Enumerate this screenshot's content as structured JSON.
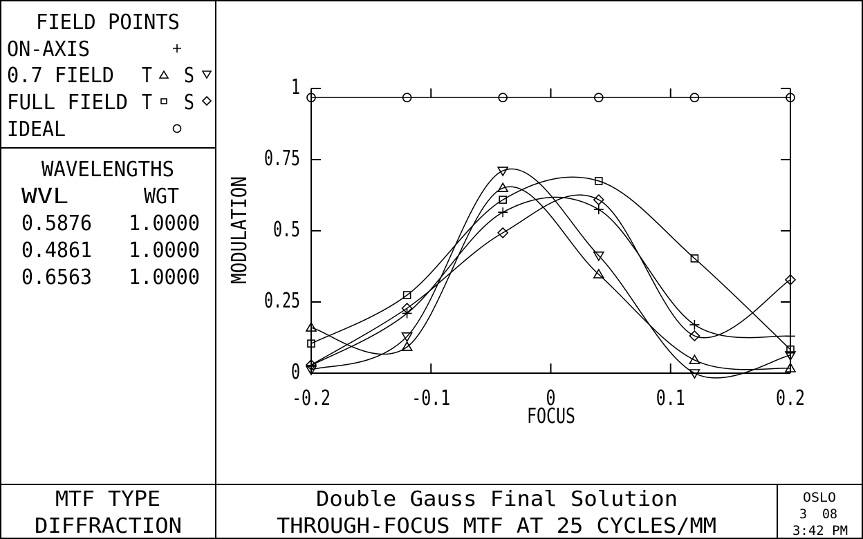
{
  "legend": {
    "title": "FIELD POINTS",
    "on_axis": "ON-AXIS",
    "field07": "0.7 FIELD",
    "full_field": "FULL FIELD",
    "ideal": "IDEAL",
    "t": "T",
    "s": "S"
  },
  "wavelengths": {
    "title": "WAVELENGTHS",
    "col_wvl": "WVL",
    "col_wgt": "WGT",
    "rows": [
      {
        "wvl": "0.5876",
        "wgt": "1.0000"
      },
      {
        "wvl": "0.4861",
        "wgt": "1.0000"
      },
      {
        "wvl": "0.6563",
        "wgt": "1.0000"
      }
    ]
  },
  "footer": {
    "mtf_type_label": "MTF TYPE",
    "mtf_type_value": "DIFFRACTION",
    "title": "Double Gauss Final Solution",
    "subtitle": "THROUGH-FOCUS MTF AT 25 CYCLES/MM",
    "program": "OSLO",
    "date": "3  08",
    "time": "3:42 PM"
  },
  "chart_data": {
    "type": "line",
    "title": "THROUGH-FOCUS MTF AT 25 CYCLES/MM",
    "xlabel": "FOCUS",
    "ylabel": "MODULATION",
    "xlim": [
      -0.2,
      0.2
    ],
    "ylim": [
      0,
      1
    ],
    "xticks": [
      "-0.2",
      "-0.1",
      "0",
      "0.1",
      "0.2"
    ],
    "yticks": [
      "0",
      "0.25",
      "0.5",
      "0.75",
      "1"
    ],
    "grid": false,
    "x": [
      -0.2,
      -0.12,
      -0.04,
      0.04,
      0.12,
      0.2
    ],
    "series": [
      {
        "name": "On-axis",
        "marker": "plus",
        "values": [
          0.027,
          0.21,
          0.565,
          0.575,
          0.17,
          0.13
        ]
      },
      {
        "name": "0.7 Field T",
        "marker": "triangle-up",
        "values": [
          0.16,
          0.092,
          0.65,
          0.347,
          0.046,
          0.017
        ]
      },
      {
        "name": "0.7 Field S",
        "marker": "triangle-down",
        "values": [
          0.012,
          0.129,
          0.711,
          0.413,
          0.0,
          0.063
        ]
      },
      {
        "name": "Full Field T",
        "marker": "square",
        "values": [
          0.104,
          0.274,
          0.609,
          0.675,
          0.403,
          0.083
        ]
      },
      {
        "name": "Full Field S",
        "marker": "diamond",
        "values": [
          0.029,
          0.228,
          0.493,
          0.609,
          0.131,
          0.328
        ]
      },
      {
        "name": "Ideal",
        "marker": "circle",
        "values": [
          0.968,
          0.968,
          0.968,
          0.968,
          0.968,
          0.968
        ]
      }
    ]
  }
}
